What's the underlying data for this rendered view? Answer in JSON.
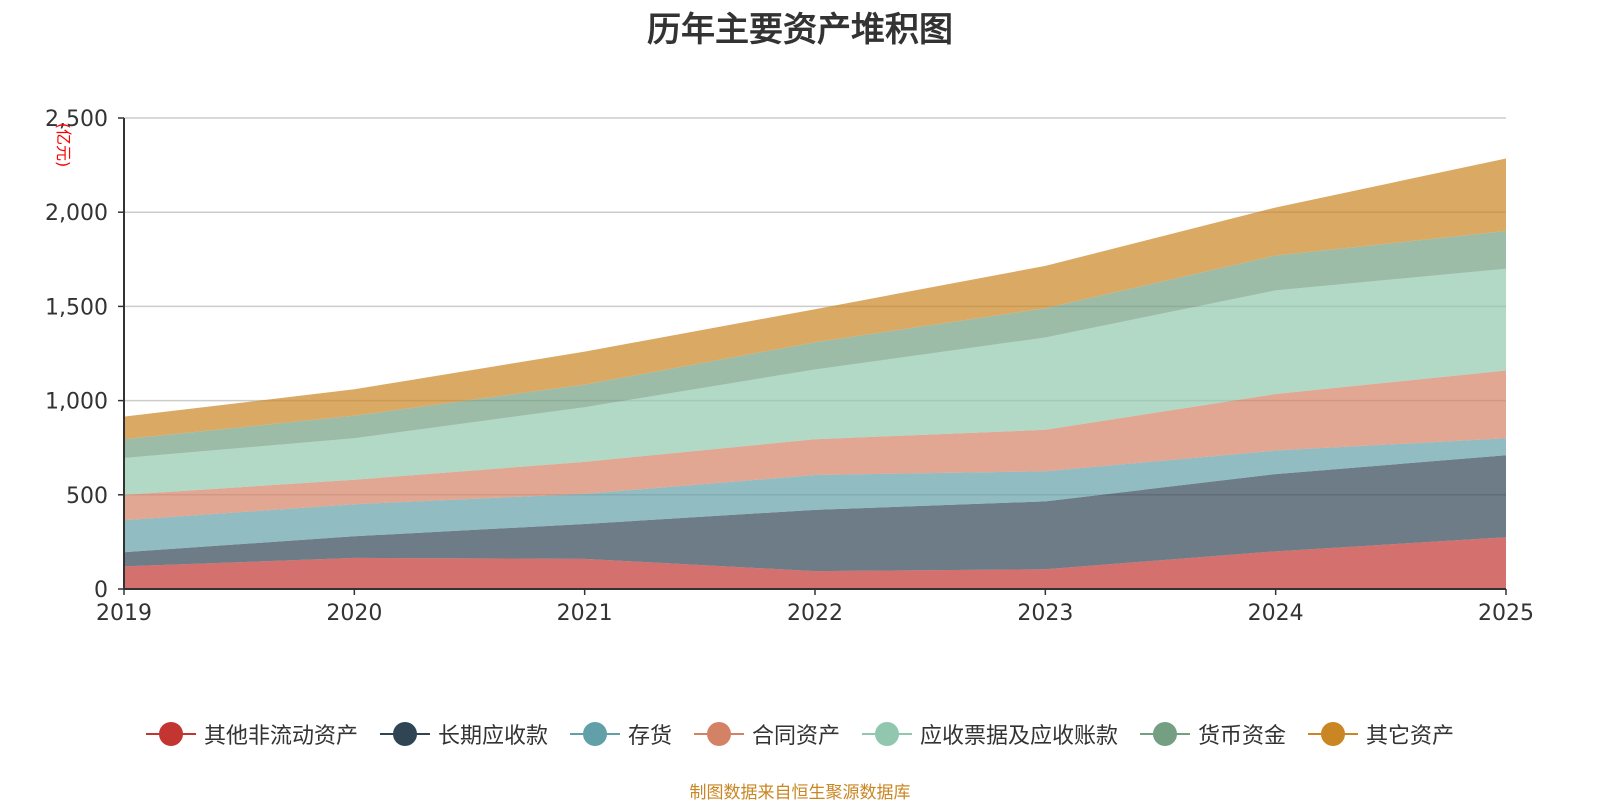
{
  "chart_data": {
    "type": "area",
    "stacked": true,
    "title": "历年主要资产堆积图",
    "ylabel": "(亿元)",
    "xlabel": "",
    "ylim": [
      0,
      2500
    ],
    "yticks": [
      0,
      500,
      1000,
      1500,
      2000,
      2500
    ],
    "ytick_labels": [
      "0",
      "500",
      "1,000",
      "1,500",
      "2,000",
      "2,500"
    ],
    "categories": [
      "2019",
      "2020",
      "2021",
      "2022",
      "2023",
      "2024",
      "2025"
    ],
    "grid": true,
    "legend_position": "bottom",
    "series": [
      {
        "name": "其他非流动资产",
        "color": "#c23531",
        "values": [
          120,
          165,
          160,
          95,
          105,
          200,
          275
        ]
      },
      {
        "name": "长期应收款",
        "color": "#2f4554",
        "values": [
          75,
          115,
          185,
          325,
          360,
          410,
          435
        ]
      },
      {
        "name": "存货",
        "color": "#61a0a8",
        "values": [
          170,
          170,
          160,
          185,
          160,
          125,
          90
        ]
      },
      {
        "name": "合同资产",
        "color": "#d48265",
        "values": [
          135,
          130,
          170,
          190,
          220,
          300,
          360
        ]
      },
      {
        "name": "应收票据及应收账款",
        "color": "#91c7ae",
        "values": [
          195,
          220,
          290,
          370,
          490,
          550,
          540
        ]
      },
      {
        "name": "货币资金",
        "color": "#749f83",
        "values": [
          100,
          120,
          120,
          145,
          155,
          185,
          200
        ]
      },
      {
        "name": "其它资产",
        "color": "#ca8622",
        "values": [
          120,
          140,
          175,
          175,
          225,
          255,
          385
        ]
      }
    ],
    "source_note": "制图数据来自恒生聚源数据库",
    "source_color": "#ca8622",
    "ylabel_color": "#ff0000"
  }
}
